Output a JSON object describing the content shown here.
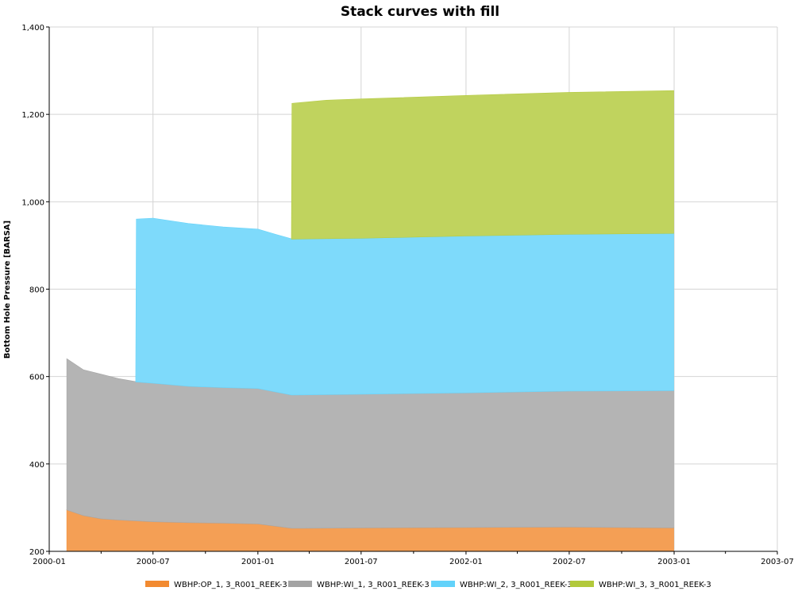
{
  "chart_data": {
    "type": "area",
    "stacked": true,
    "title": "Stack curves with fill",
    "xlabel": "",
    "ylabel": "Bottom Hole Pressure [BARSA]",
    "xlim": [
      "2000-01-01",
      "2003-07-01"
    ],
    "ylim": [
      200,
      1400
    ],
    "x_ticks": [
      "2000-01",
      "2000-07",
      "2001-01",
      "2001-07",
      "2002-01",
      "2002-07",
      "2003-01",
      "2003-07"
    ],
    "y_ticks": [
      200,
      400,
      600,
      800,
      1000,
      1200,
      1400
    ],
    "y_tick_labels": [
      "200",
      "400",
      "600",
      "800",
      "1,000",
      "1,200",
      "1,400"
    ],
    "grid": true,
    "legend_position": "bottom",
    "series": [
      {
        "name": "WBHP:OP_1, 3_R001_REEK-3",
        "color": "#f28a30",
        "points": [
          [
            "2000-02-01",
            295
          ],
          [
            "2000-03-01",
            282
          ],
          [
            "2000-04-01",
            275
          ],
          [
            "2000-05-01",
            272
          ],
          [
            "2000-06-01",
            270
          ],
          [
            "2000-07-01",
            268
          ],
          [
            "2000-09-01",
            266
          ],
          [
            "2000-11-01",
            265
          ],
          [
            "2001-01-01",
            263
          ],
          [
            "2001-02-01",
            258
          ],
          [
            "2001-03-01",
            253
          ],
          [
            "2001-07-01",
            254
          ],
          [
            "2002-01-01",
            255
          ],
          [
            "2002-07-01",
            256
          ],
          [
            "2002-12-31",
            254
          ]
        ]
      },
      {
        "name": "WBHP:WI_1, 3_R001_REEK-3",
        "color": "#a3a3a3",
        "points": [
          [
            "2000-02-01",
            640
          ],
          [
            "2000-03-01",
            615
          ],
          [
            "2000-04-01",
            605
          ],
          [
            "2000-05-01",
            595
          ],
          [
            "2000-06-01",
            588
          ],
          [
            "2000-07-01",
            585
          ],
          [
            "2000-09-01",
            578
          ],
          [
            "2000-11-01",
            575
          ],
          [
            "2001-01-01",
            573
          ],
          [
            "2001-02-01",
            565
          ],
          [
            "2001-03-01",
            558
          ],
          [
            "2001-07-01",
            560
          ],
          [
            "2002-01-01",
            563
          ],
          [
            "2002-07-01",
            567
          ],
          [
            "2002-12-31",
            568
          ]
        ]
      },
      {
        "name": "WBHP:WI_2, 3_R001_REEK-3",
        "color": "#62d2fa",
        "points": [
          [
            "2000-06-01",
            588
          ],
          [
            "2000-06-02",
            960
          ],
          [
            "2000-07-01",
            962
          ],
          [
            "2000-09-01",
            950
          ],
          [
            "2000-11-01",
            942
          ],
          [
            "2001-01-01",
            937
          ],
          [
            "2001-02-01",
            925
          ],
          [
            "2001-03-01",
            915
          ],
          [
            "2001-07-01",
            917
          ],
          [
            "2002-01-01",
            922
          ],
          [
            "2002-07-01",
            926
          ],
          [
            "2002-12-31",
            928
          ]
        ]
      },
      {
        "name": "WBHP:WI_3, 3_R001_REEK-3",
        "color": "#b2c93b",
        "points": [
          [
            "2001-03-01",
            915
          ],
          [
            "2001-03-02",
            1225
          ],
          [
            "2001-05-01",
            1232
          ],
          [
            "2001-07-01",
            1235
          ],
          [
            "2002-01-01",
            1243
          ],
          [
            "2002-07-01",
            1250
          ],
          [
            "2002-12-31",
            1254
          ]
        ]
      }
    ]
  }
}
